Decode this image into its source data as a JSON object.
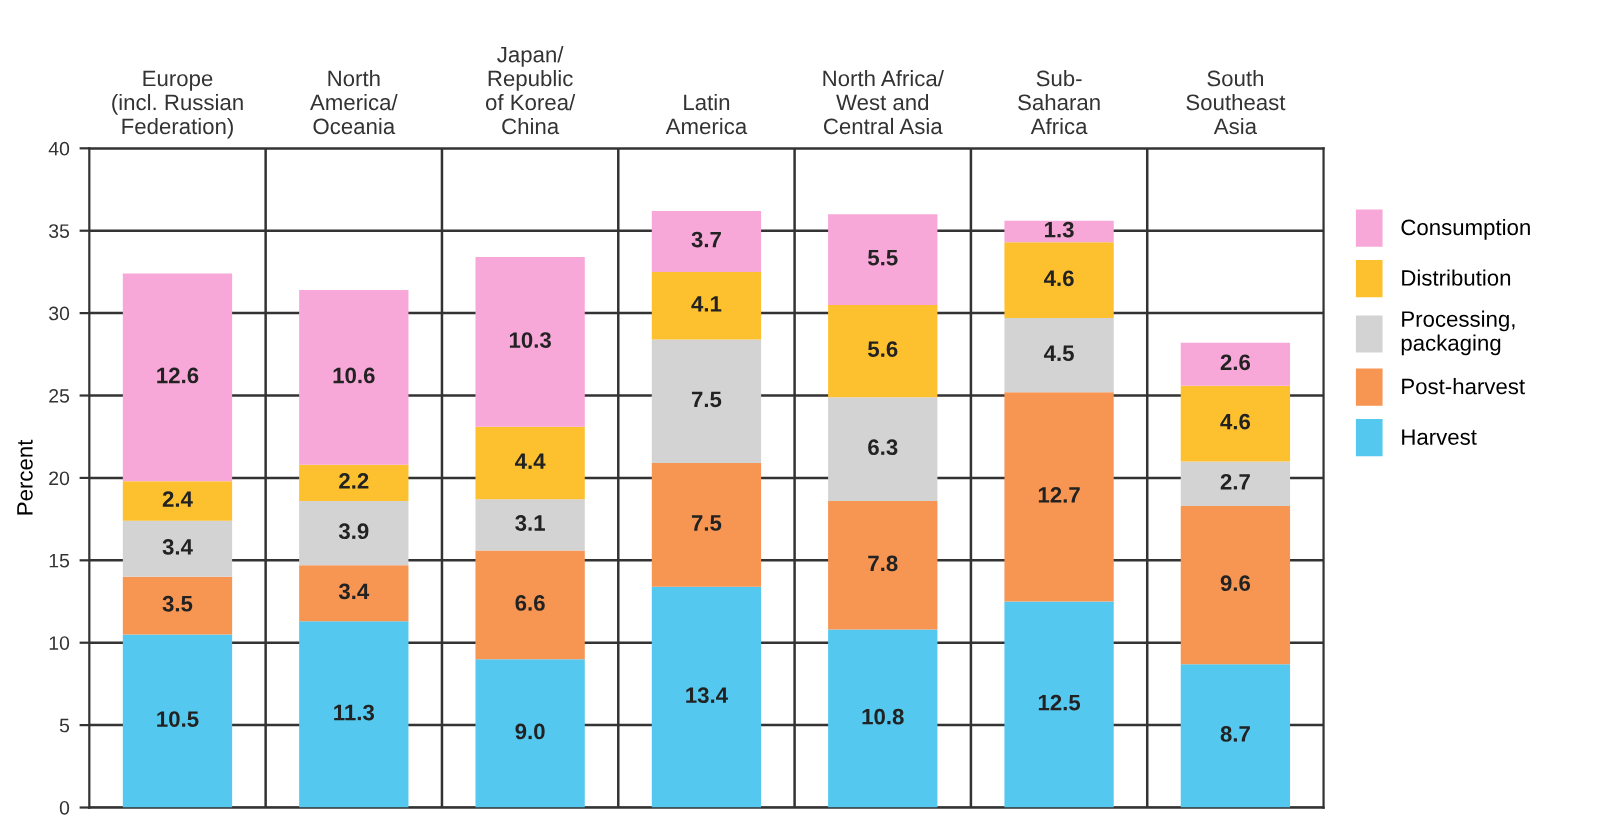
{
  "chart_data": {
    "type": "bar",
    "stacked": true,
    "ylabel": "Percent",
    "categories": [
      "Europe\n(incl. Russian\nFederation)",
      "North\nAmerica/\nOceania",
      "Japan/\nRepublic\nof Korea/\nChina",
      "Latin\nAmerica",
      "North Africa/\nWest and\nCentral Asia",
      "Sub-\nSaharan\nAfrica",
      "South\nSoutheast\nAsia"
    ],
    "series": [
      {
        "name": "Harvest",
        "color": "#55c8ef",
        "values": [
          10.5,
          11.3,
          9.0,
          13.4,
          10.8,
          12.5,
          8.7
        ],
        "value_labels": [
          "10.5",
          "11.3",
          "9.0",
          "13.4",
          "10.8",
          "12.5",
          "8.7"
        ]
      },
      {
        "name": "Post-harvest",
        "color": "#f79552",
        "values": [
          3.5,
          3.4,
          6.6,
          7.5,
          7.8,
          12.7,
          9.6
        ]
      },
      {
        "name": "Processing,\npackaging",
        "color": "#d3d3d3",
        "values": [
          3.4,
          3.9,
          3.1,
          7.5,
          6.3,
          4.5,
          2.7
        ]
      },
      {
        "name": "Distribution",
        "color": "#fdc02f",
        "values": [
          2.4,
          2.2,
          4.4,
          4.1,
          5.6,
          4.6,
          4.6
        ]
      },
      {
        "name": "Consumption",
        "color": "#f7a8d8",
        "values": [
          12.6,
          10.6,
          10.3,
          3.7,
          5.5,
          1.3,
          2.6
        ]
      }
    ],
    "ylim": [
      0,
      40
    ],
    "yticks": [
      0,
      5,
      10,
      15,
      20,
      25,
      30,
      35,
      40
    ],
    "data_labels": true,
    "grid": true,
    "legend": "right"
  }
}
